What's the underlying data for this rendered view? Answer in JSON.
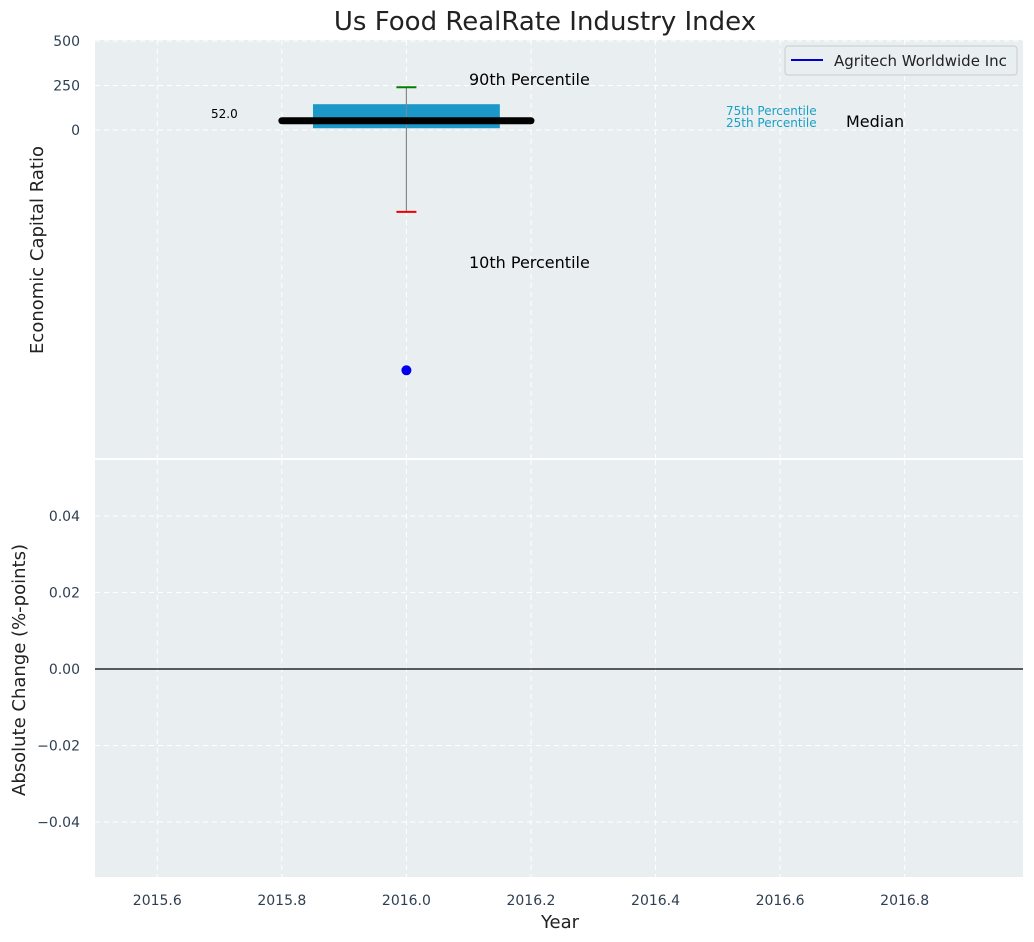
{
  "chart_data": {
    "title": "Us Food RealRate Industry Index",
    "xlabel": "Year",
    "xlim": [
      2015.5,
      2016.99
    ],
    "x_ticks": [
      "2015.6",
      "2015.8",
      "2016.0",
      "2016.2",
      "2016.4",
      "2016.6",
      "2016.8"
    ],
    "grid": true,
    "legend_position": "top-right",
    "top_panel": {
      "type": "box",
      "ylabel": "Economic Capital Ratio",
      "ylim": [
        -650,
        500
      ],
      "y_ticks": [
        "500",
        "250",
        "0"
      ],
      "legend": [
        {
          "name": "Agritech Worldwide Inc",
          "color": "#0000cc"
        }
      ],
      "box": {
        "x": 2016.0,
        "x_start": 2015.85,
        "x_end": 2016.15,
        "p10": -460,
        "p25": 10,
        "median": 52,
        "p75": 145,
        "p90": 240,
        "median_line_x": [
          2015.8,
          2016.2
        ],
        "color": "#1b98c8"
      },
      "company_point": {
        "x": 2016.0,
        "y": -1350,
        "color": "#0000ee"
      },
      "annotations": {
        "p90": "90th Percentile",
        "p10": "10th Percentile",
        "p75": "75th Percentile",
        "p25": "25th Percentile",
        "median": "Median",
        "median_value": "52.0"
      }
    },
    "bottom_panel": {
      "type": "line",
      "ylabel": "Absolute Change (%-points)",
      "ylim": [
        -0.055,
        0.055
      ],
      "y_ticks": [
        "0.04",
        "0.02",
        "0.00",
        "−0.02",
        "−0.04"
      ],
      "zero_line": 0
    }
  },
  "colors": {
    "background": "#e9eef0",
    "grid": "#ffffff",
    "box": "#1b98c8",
    "p90_whisker": "#008000",
    "p10_whisker": "#ee0000",
    "median": "#000000"
  }
}
